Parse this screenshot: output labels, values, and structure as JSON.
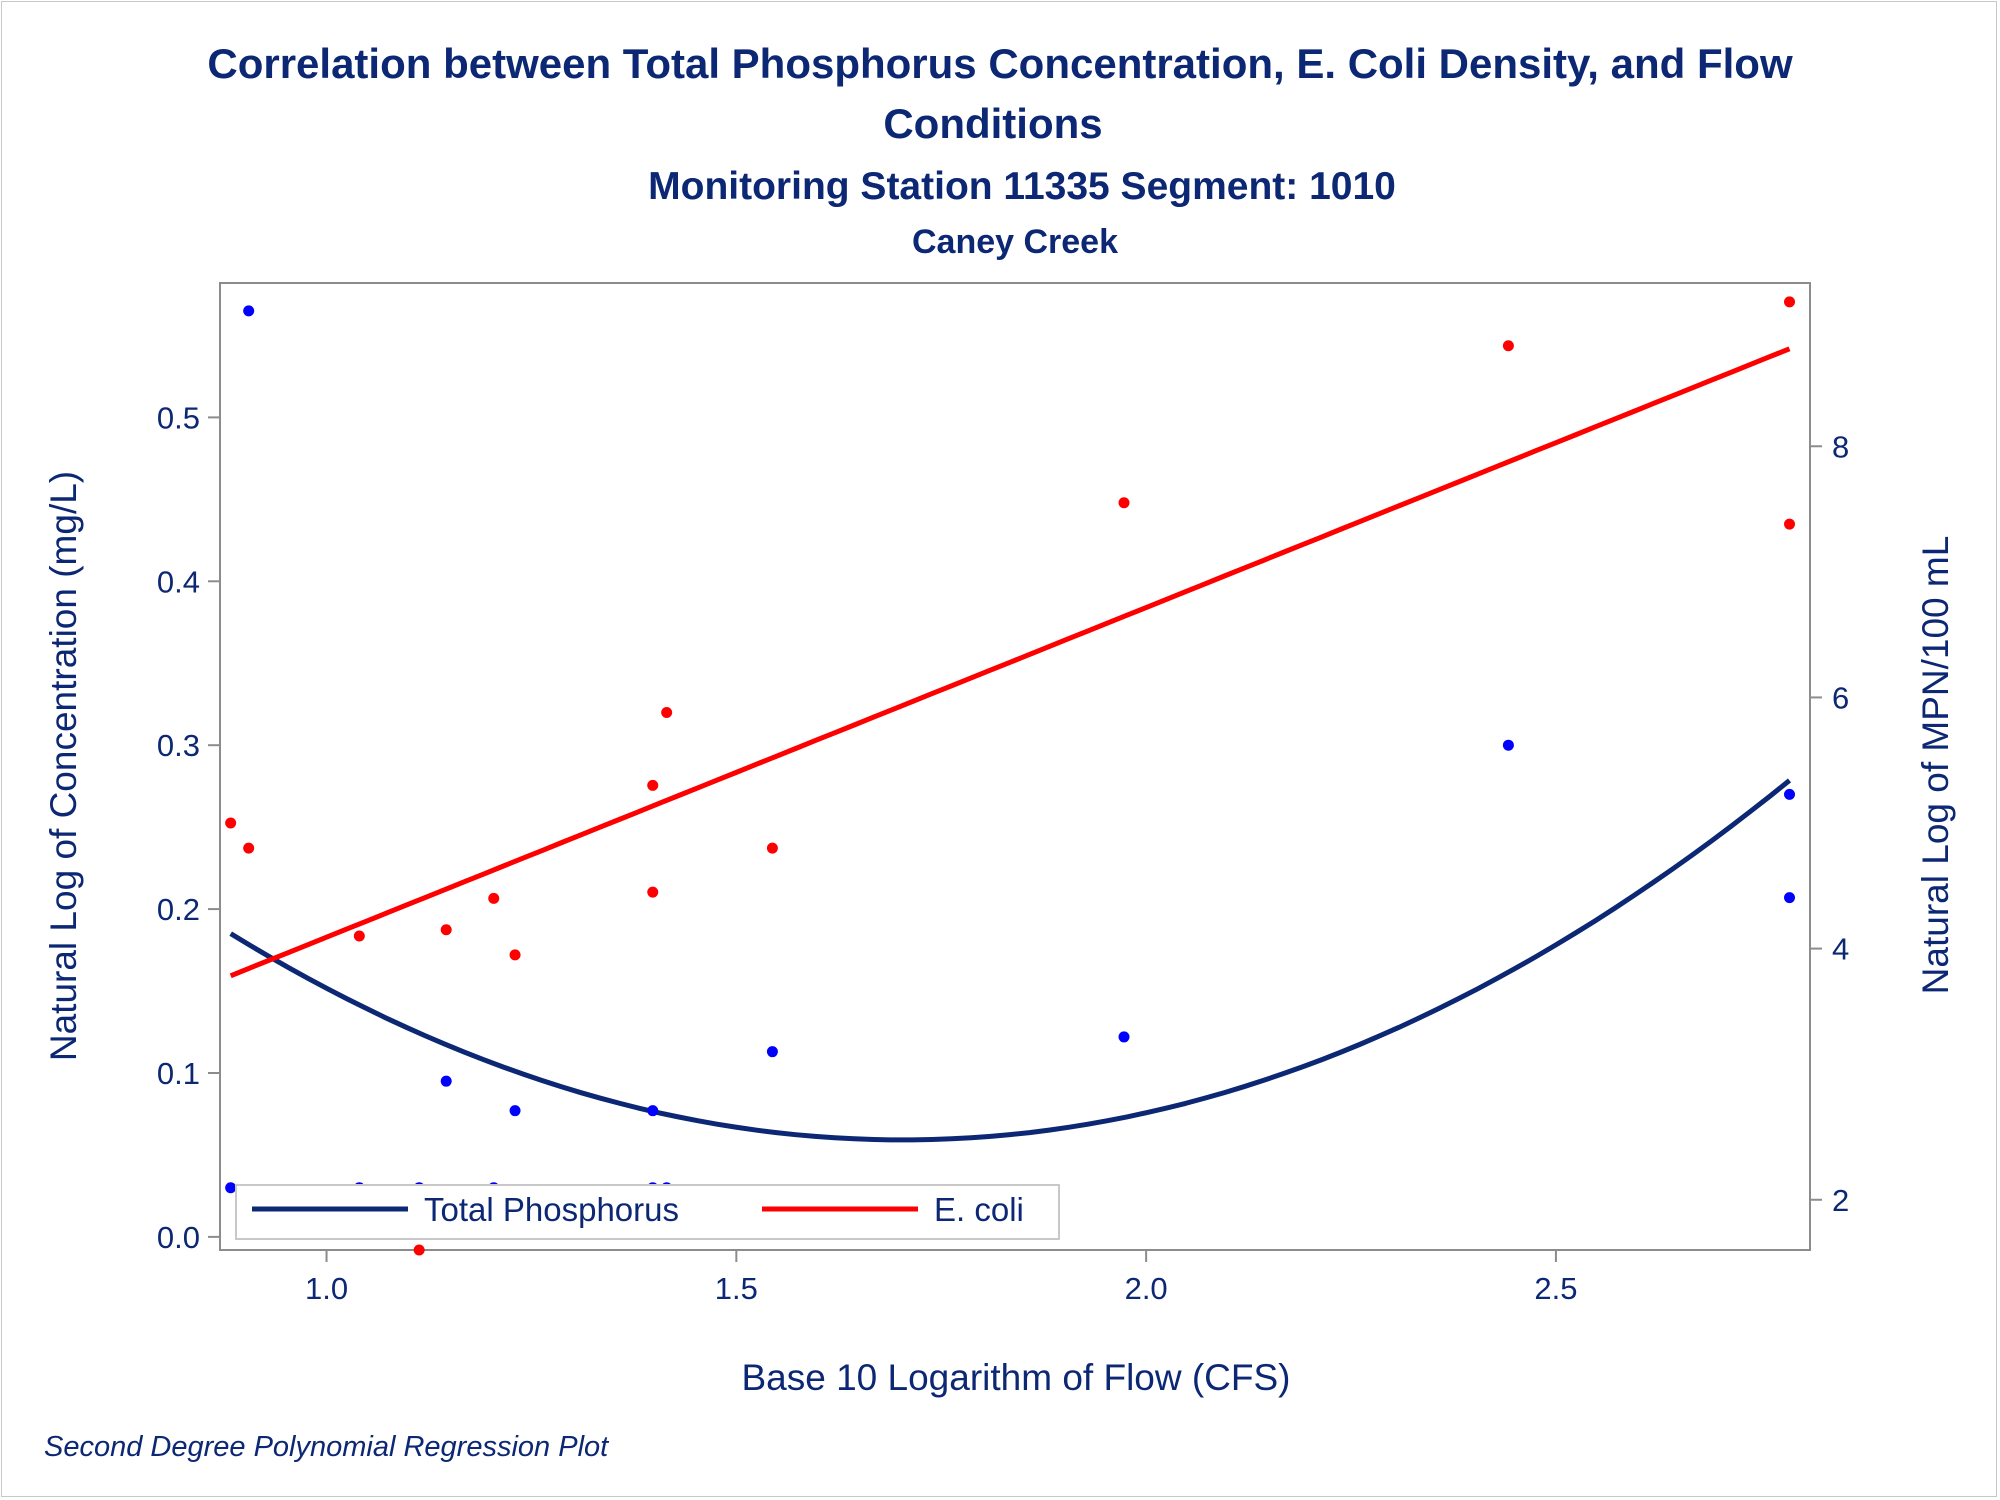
{
  "chart_data": {
    "type": "scatter",
    "title": "Correlation between Total Phosphorus Concentration, E. Coli Density, and Flow",
    "title_line2": "Conditions",
    "subtitle": "Monitoring Station 11335 Segment: 1010",
    "subtitle2": "Caney Creek",
    "xlabel": "Base 10 Logarithm of Flow (CFS)",
    "ylabel_left": "Natural Log of Concentration (mg/L)",
    "ylabel_right": "Natural Log of MPN/100 mL",
    "footnote": "Second Degree Polynomial Regression Plot",
    "xlim": [
      0.87,
      2.81
    ],
    "ylim_left": [
      -0.008,
      0.582
    ],
    "ylim_right": [
      1.6,
      9.3
    ],
    "x_ticks": [
      1.0,
      1.5,
      2.0,
      2.5
    ],
    "x_tick_labels": [
      "1.0",
      "1.5",
      "2.0",
      "2.5"
    ],
    "y_left_ticks": [
      0.0,
      0.1,
      0.2,
      0.3,
      0.4,
      0.5
    ],
    "y_left_tick_labels": [
      "0.0",
      "0.1",
      "0.2",
      "0.3",
      "0.4",
      "0.5"
    ],
    "y_right_ticks": [
      2,
      4,
      6,
      8
    ],
    "y_right_tick_labels": [
      "2",
      "4",
      "6",
      "8"
    ],
    "legend_position": "bottom-left",
    "grid": false,
    "series": [
      {
        "name": "Total Phosphorus",
        "axis": "left",
        "color": "#0000ff",
        "line_color": "#0c2773",
        "points": [
          [
            0.883,
            0.03
          ],
          [
            0.905,
            0.565
          ],
          [
            1.04,
            0.03
          ],
          [
            1.113,
            0.03
          ],
          [
            1.146,
            0.095
          ],
          [
            1.204,
            0.03
          ],
          [
            1.23,
            0.077
          ],
          [
            1.398,
            0.077
          ],
          [
            1.398,
            0.03
          ],
          [
            1.415,
            0.03
          ],
          [
            1.544,
            0.113
          ],
          [
            1.973,
            0.122
          ],
          [
            2.442,
            0.3
          ],
          [
            2.785,
            0.27
          ],
          [
            2.785,
            0.207
          ]
        ],
        "fit": {
          "type": "quadratic",
          "coef": [
            0.6023,
            -0.6379,
            0.1873
          ],
          "x_range": [
            0.883,
            2.785
          ]
        }
      },
      {
        "name": "E. coli",
        "axis": "right",
        "color": "#ff0000",
        "line_color": "#ff0000",
        "points": [
          [
            0.883,
            5.0
          ],
          [
            0.905,
            4.8
          ],
          [
            1.04,
            4.1
          ],
          [
            1.113,
            1.6
          ],
          [
            1.146,
            4.15
          ],
          [
            1.204,
            4.4
          ],
          [
            1.23,
            3.95
          ],
          [
            1.398,
            5.3
          ],
          [
            1.398,
            4.45
          ],
          [
            1.415,
            5.88
          ],
          [
            1.544,
            4.8
          ],
          [
            1.973,
            7.55
          ],
          [
            2.442,
            8.8
          ],
          [
            2.785,
            7.38
          ],
          [
            2.785,
            9.15
          ]
        ],
        "fit": {
          "type": "linear",
          "coef": [
            1.4658,
            2.625
          ],
          "x_range": [
            0.883,
            2.785
          ]
        }
      }
    ]
  }
}
